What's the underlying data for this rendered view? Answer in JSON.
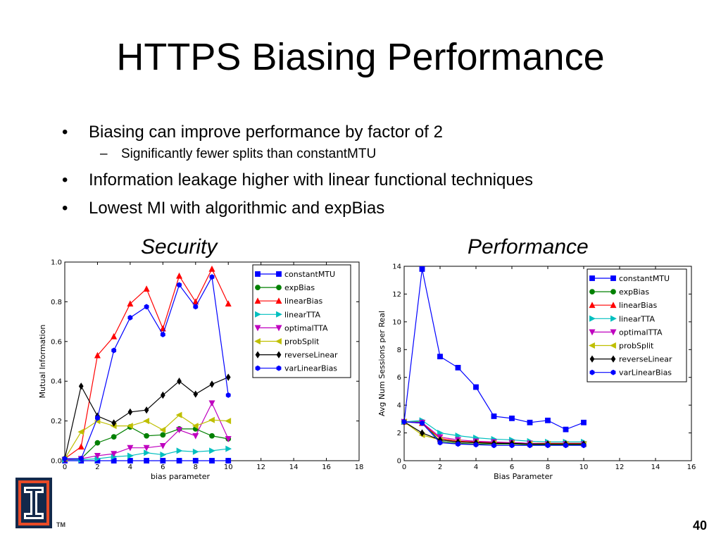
{
  "slide": {
    "title": "HTTPS Biasing Performance",
    "page_number": "40",
    "tm": "TM",
    "logo_icon": "university-block-i-logo-icon"
  },
  "bullets": [
    {
      "level": 1,
      "text": "Biasing can improve performance by factor of 2"
    },
    {
      "level": 2,
      "text": "Significantly fewer splits than constantMTU"
    },
    {
      "level": 1,
      "text": "Information leakage higher with linear functional techniques"
    },
    {
      "level": 1,
      "text": "Lowest MI with algorithmic and expBias"
    }
  ],
  "captions": {
    "left": "Security",
    "right": "Performance"
  },
  "chart_data": [
    {
      "type": "line",
      "title": "",
      "xlabel": "bias parameter",
      "ylabel": "Mutual Information",
      "xlim": [
        0,
        18
      ],
      "ylim": [
        0,
        1.0
      ],
      "xticks": [
        0,
        2,
        4,
        6,
        8,
        10,
        12,
        14,
        16,
        18
      ],
      "xtick_labels": [
        "0",
        "2",
        "4",
        "6",
        "8",
        "10",
        "12",
        "14",
        "16",
        "18"
      ],
      "yticks": [
        0,
        0.2,
        0.4,
        0.6,
        0.8,
        1.0
      ],
      "ytick_labels": [
        "0.0",
        "0.2",
        "0.4",
        "0.6",
        "0.8",
        "1.0"
      ],
      "legend": "top-right",
      "grid": false,
      "x": [
        0,
        1,
        2,
        3,
        4,
        5,
        6,
        7,
        8,
        9,
        10
      ],
      "series": [
        {
          "name": "constantMTU",
          "color": "#0000ff",
          "marker": "square",
          "values": [
            0,
            0,
            0,
            0,
            0,
            0,
            0,
            0,
            0,
            0,
            0
          ]
        },
        {
          "name": "expBias",
          "color": "#008000",
          "marker": "circle",
          "values": [
            0.01,
            0.01,
            0.09,
            0.12,
            0.17,
            0.125,
            0.13,
            0.16,
            0.16,
            0.125,
            0.11
          ]
        },
        {
          "name": "linearBias",
          "color": "#ff0000",
          "marker": "triangle-up",
          "values": [
            0.01,
            0.07,
            0.53,
            0.625,
            0.79,
            0.865,
            0.665,
            0.93,
            0.8,
            0.965,
            0.79
          ]
        },
        {
          "name": "linearTTA",
          "color": "#00bfbf",
          "marker": "triangle-right",
          "values": [
            0.005,
            0.005,
            0.01,
            0.02,
            0.025,
            0.04,
            0.03,
            0.05,
            0.045,
            0.05,
            0.06
          ]
        },
        {
          "name": "optimalTTA",
          "color": "#bf00bf",
          "marker": "triangle-down",
          "values": [
            0.005,
            0.01,
            0.025,
            0.035,
            0.065,
            0.065,
            0.075,
            0.155,
            0.125,
            0.29,
            0.11
          ]
        },
        {
          "name": "probSplit",
          "color": "#bfbf00",
          "marker": "triangle-left",
          "values": [
            0.01,
            0.145,
            0.2,
            0.175,
            0.175,
            0.2,
            0.155,
            0.23,
            0.175,
            0.205,
            0.2
          ]
        },
        {
          "name": "reverseLinear",
          "color": "#000000",
          "marker": "diamond",
          "values": [
            0.01,
            0.375,
            0.225,
            0.19,
            0.245,
            0.255,
            0.33,
            0.4,
            0.335,
            0.385,
            0.42
          ]
        },
        {
          "name": "varLinearBias",
          "color": "#0000ff",
          "marker": "hexagon",
          "values": [
            0.01,
            0.01,
            0.215,
            0.555,
            0.72,
            0.775,
            0.635,
            0.885,
            0.775,
            0.925,
            0.33
          ]
        }
      ]
    },
    {
      "type": "line",
      "title": "",
      "xlabel": "Bias Parameter",
      "ylabel": "Avg Num Sessions per Real",
      "xlim": [
        0,
        16
      ],
      "ylim": [
        0,
        14
      ],
      "xticks": [
        0,
        2,
        4,
        6,
        8,
        10,
        12,
        14,
        16
      ],
      "xtick_labels": [
        "0",
        "2",
        "4",
        "6",
        "8",
        "10",
        "12",
        "14",
        "16"
      ],
      "yticks": [
        0,
        2,
        4,
        6,
        8,
        10,
        12,
        14
      ],
      "ytick_labels": [
        "0",
        "2",
        "4",
        "6",
        "8",
        "10",
        "12",
        "14"
      ],
      "legend": "top-right",
      "grid": false,
      "x": [
        0,
        1,
        2,
        3,
        4,
        5,
        6,
        7,
        8,
        9,
        10
      ],
      "series": [
        {
          "name": "constantMTU",
          "color": "#0000ff",
          "marker": "square",
          "values": [
            2.8,
            13.8,
            7.5,
            6.7,
            5.3,
            3.2,
            3.05,
            2.75,
            2.9,
            2.25,
            2.75
          ]
        },
        {
          "name": "expBias",
          "color": "#008000",
          "marker": "circle",
          "values": [
            2.8,
            2.8,
            1.4,
            1.25,
            1.2,
            1.2,
            1.2,
            1.15,
            1.15,
            1.15,
            1.15
          ]
        },
        {
          "name": "linearBias",
          "color": "#ff0000",
          "marker": "triangle-up",
          "values": [
            2.8,
            2.7,
            1.6,
            1.4,
            1.35,
            1.3,
            1.3,
            1.25,
            1.25,
            1.25,
            1.25
          ]
        },
        {
          "name": "linearTTA",
          "color": "#00bfbf",
          "marker": "triangle-right",
          "values": [
            2.8,
            2.9,
            2.0,
            1.8,
            1.65,
            1.55,
            1.5,
            1.4,
            1.35,
            1.35,
            1.35
          ]
        },
        {
          "name": "optimalTTA",
          "color": "#bf00bf",
          "marker": "triangle-down",
          "values": [
            2.8,
            2.75,
            1.7,
            1.5,
            1.4,
            1.35,
            1.3,
            1.25,
            1.2,
            1.2,
            1.2
          ]
        },
        {
          "name": "probSplit",
          "color": "#bfbf00",
          "marker": "triangle-left",
          "values": [
            2.8,
            1.85,
            1.5,
            1.35,
            1.3,
            1.25,
            1.25,
            1.2,
            1.2,
            1.2,
            1.2
          ]
        },
        {
          "name": "reverseLinear",
          "color": "#000000",
          "marker": "diamond",
          "values": [
            2.8,
            2.0,
            1.5,
            1.35,
            1.3,
            1.25,
            1.25,
            1.2,
            1.2,
            1.2,
            1.2
          ]
        },
        {
          "name": "varLinearBias",
          "color": "#0000ff",
          "marker": "hexagon",
          "values": [
            2.8,
            2.7,
            1.3,
            1.2,
            1.15,
            1.1,
            1.1,
            1.1,
            1.1,
            1.1,
            1.1
          ]
        }
      ]
    }
  ]
}
